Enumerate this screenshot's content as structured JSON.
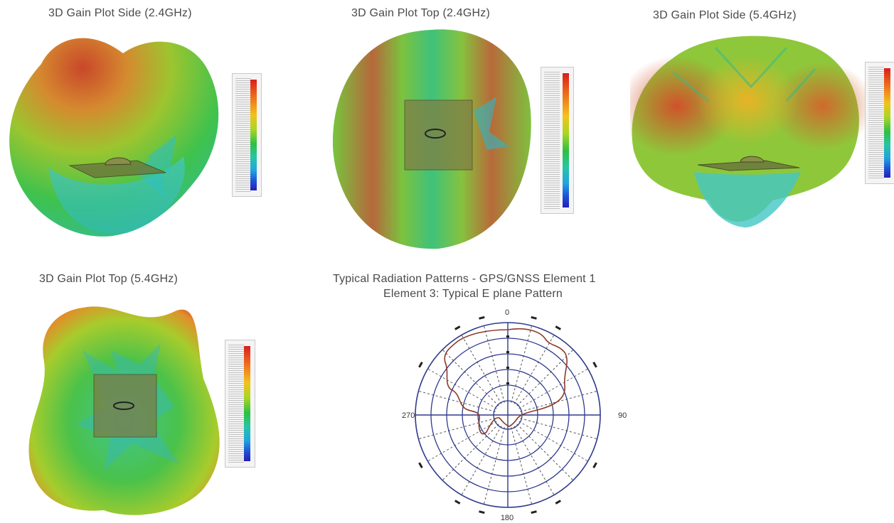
{
  "figures": [
    {
      "title": "3D Gain Plot Side (2.4GHz)"
    },
    {
      "title": "3D Gain Plot Top (2.4GHz)"
    },
    {
      "title": "3D Gain Plot Side (5.4GHz)"
    },
    {
      "title": "3D Gain Plot Top (5.4GHz)"
    }
  ],
  "polar": {
    "title_line1": "Typical Radiation Patterns - GPS/GNSS Element 1",
    "title_line2": "Element 3: Typical  E plane Pattern",
    "angle_labels": {
      "top": "0",
      "right": "90",
      "bottom": "180",
      "left": "270"
    }
  },
  "colors": {
    "scale_high": "#d81e1e",
    "scale_mid": "#2dc043",
    "scale_low": "#2420b8",
    "polar_grid": "#2e3a8c",
    "polar_trace": "#8a3b2a"
  }
}
